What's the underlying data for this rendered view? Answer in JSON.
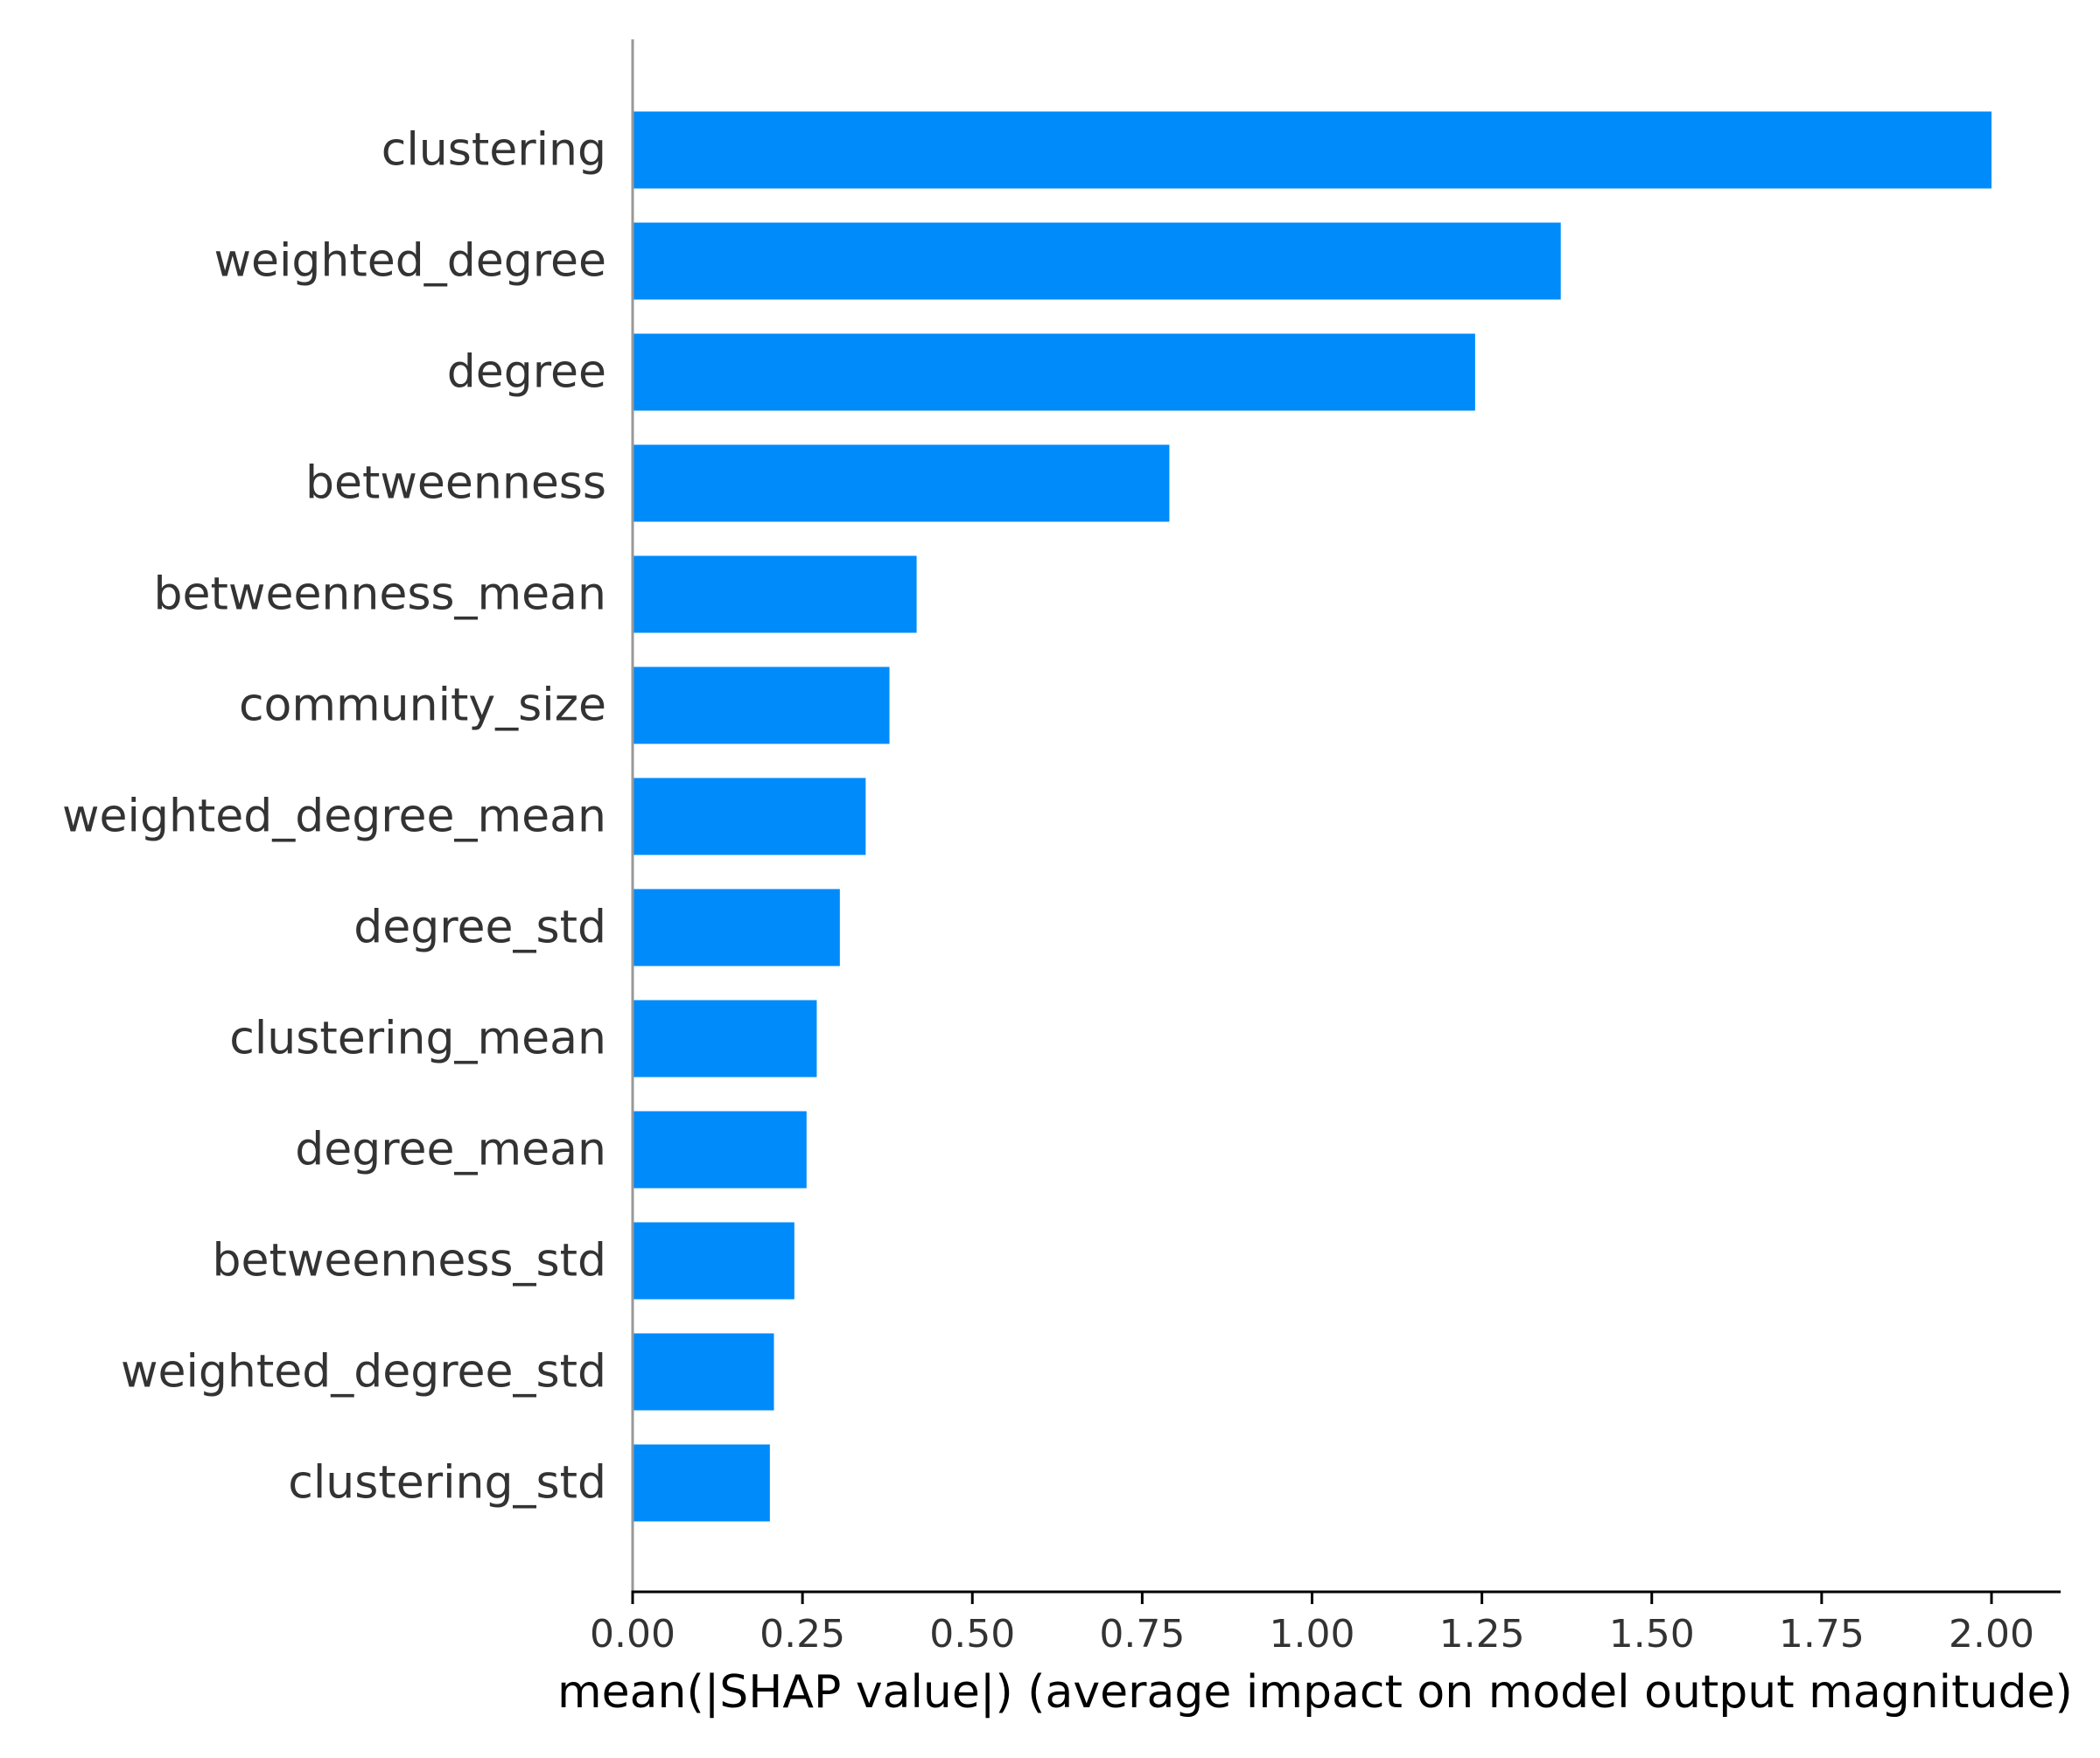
{
  "chart_data": {
    "type": "bar",
    "orientation": "horizontal",
    "title": "",
    "xlabel": "mean(|SHAP value|) (average impact on model output magnitude)",
    "ylabel": "",
    "xlim": [
      0,
      2.1
    ],
    "xticks": [
      0.0,
      0.25,
      0.5,
      0.75,
      1.0,
      1.25,
      1.5,
      1.75,
      2.0
    ],
    "xtick_labels": [
      "0.00",
      "0.25",
      "0.50",
      "0.75",
      "1.00",
      "1.25",
      "1.50",
      "1.75",
      "2.00"
    ],
    "grid": false,
    "legend": "none",
    "bar_color": "#008bfb",
    "categories": [
      "clustering",
      "weighted_degree",
      "degree",
      "betweenness",
      "betweenness_mean",
      "community_size",
      "weighted_degree_mean",
      "degree_std",
      "clustering_mean",
      "degree_mean",
      "betweenness_std",
      "weighted_degree_std",
      "clustering_std"
    ],
    "values": [
      2.0,
      1.366,
      1.24,
      0.79,
      0.418,
      0.378,
      0.343,
      0.305,
      0.271,
      0.256,
      0.238,
      0.208,
      0.202
    ]
  }
}
